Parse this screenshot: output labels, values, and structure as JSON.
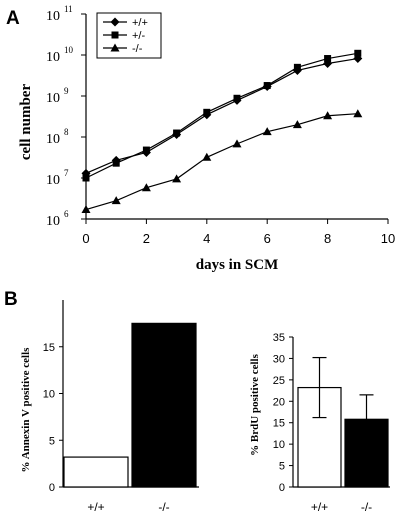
{
  "chart_data": [
    {
      "panel_label": "A",
      "type": "line",
      "xlabel": "days in SCM",
      "ylabel": "cell number",
      "xlim": [
        0,
        10
      ],
      "xticks": [
        "0",
        "2",
        "4",
        "6",
        "8",
        "10"
      ],
      "ylog": true,
      "ylim": [
        1000000,
        100000000000
      ],
      "yticks": [
        {
          "base": "10",
          "exp": "6"
        },
        {
          "base": "10",
          "exp": "7"
        },
        {
          "base": "10",
          "exp": "8"
        },
        {
          "base": "10",
          "exp": "9"
        },
        {
          "base": "10",
          "exp": "10"
        },
        {
          "base": "10",
          "exp": "11"
        }
      ],
      "x": [
        0,
        1,
        2,
        3,
        4,
        5,
        6,
        7,
        8,
        9
      ],
      "legend_position": "top-left",
      "series": [
        {
          "name": "+/+",
          "marker": "diamond",
          "values": [
            13000000,
            27000000,
            42000000,
            115000000,
            350000000,
            780000000,
            1700000000,
            4200000000,
            6200000000,
            8200000000
          ]
        },
        {
          "name": "+/-",
          "marker": "square",
          "values": [
            10000000,
            23000000,
            48000000,
            125000000,
            400000000,
            880000000,
            1800000000,
            5000000000,
            8200000000,
            11000000000
          ]
        },
        {
          "name": "-/-",
          "marker": "triangle",
          "values": [
            1700000,
            2800000,
            5800000,
            9500000,
            32000000,
            68000000,
            135000000,
            200000000,
            330000000,
            370000000
          ]
        }
      ],
      "grid": false
    },
    {
      "panel_label": "B",
      "type": "bar",
      "ylabel": "% Annexin V positive cells",
      "ylim": [
        0,
        20
      ],
      "yticks": [
        "0",
        "5",
        "10",
        "15"
      ],
      "categories": [
        "+/+",
        "-/-"
      ],
      "values": [
        3.2,
        17.5
      ],
      "bar_colors": [
        "#ffffff",
        "#000000"
      ]
    },
    {
      "type": "bar",
      "ylabel": "% BrdU positive cells",
      "ylim": [
        0,
        35
      ],
      "yticks": [
        "0",
        "5",
        "10",
        "15",
        "20",
        "25",
        "30",
        "35"
      ],
      "categories": [
        "+/+",
        "-/-"
      ],
      "values": [
        23.2,
        15.8
      ],
      "error": [
        7.0,
        5.7
      ],
      "bar_colors": [
        "#ffffff",
        "#000000"
      ]
    }
  ]
}
